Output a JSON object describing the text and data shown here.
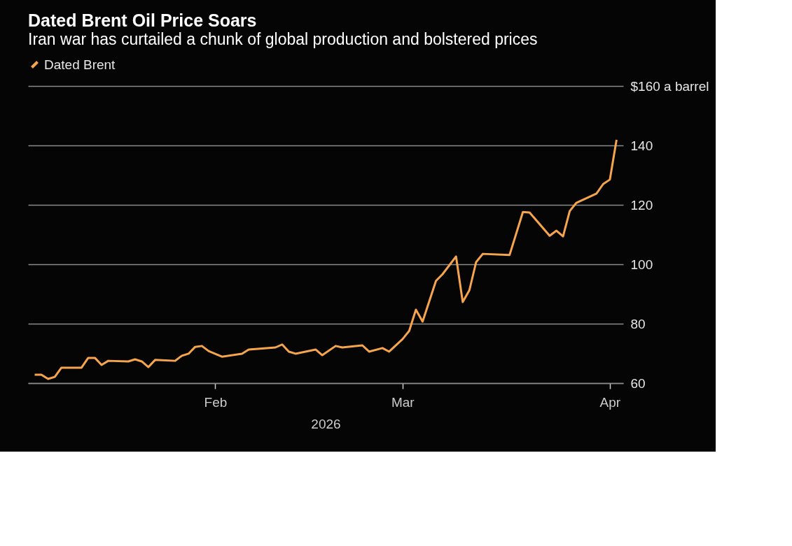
{
  "chart_data": {
    "type": "line",
    "title": "Dated Brent Oil Price Soars",
    "subtitle": "Iran war has curtailed a chunk of global production and bolstered prices",
    "xlabel": "2026",
    "legend": "top left",
    "grid": "y",
    "line_style": "solid",
    "marker": "none",
    "xlim": [
      "2026-01-04",
      "2026-04-03"
    ],
    "xticks": [
      {
        "value": "2026-02-01",
        "label": "Feb"
      },
      {
        "value": "2026-03-01",
        "label": "Mar"
      },
      {
        "value": "2026-04-01",
        "label": "Apr"
      }
    ],
    "ylim": [
      60,
      160
    ],
    "yticks": [
      60,
      80,
      100,
      120,
      140,
      {
        "value": 160,
        "label": "$160 a barrel"
      }
    ],
    "x": [
      "2026-01-05",
      "2026-01-06",
      "2026-01-07",
      "2026-01-08",
      "2026-01-09",
      "2026-01-12",
      "2026-01-13",
      "2026-01-14",
      "2026-01-15",
      "2026-01-16",
      "2026-01-19",
      "2026-01-20",
      "2026-01-21",
      "2026-01-22",
      "2026-01-23",
      "2026-01-26",
      "2026-01-27",
      "2026-01-28",
      "2026-01-29",
      "2026-01-30",
      "2026-01-31",
      "2026-02-02",
      "2026-02-05",
      "2026-02-06",
      "2026-02-10",
      "2026-02-11",
      "2026-02-12",
      "2026-02-13",
      "2026-02-16",
      "2026-02-17",
      "2026-02-19",
      "2026-02-20",
      "2026-02-23",
      "2026-02-24",
      "2026-02-26",
      "2026-02-27",
      "2026-03-01",
      "2026-03-02",
      "2026-03-03",
      "2026-03-04",
      "2026-03-06",
      "2026-03-07",
      "2026-03-09",
      "2026-03-10",
      "2026-03-11",
      "2026-03-12",
      "2026-03-13",
      "2026-03-17",
      "2026-03-19",
      "2026-03-20",
      "2026-03-23",
      "2026-03-24",
      "2026-03-25",
      "2026-03-26",
      "2026-03-27",
      "2026-03-30",
      "2026-03-31",
      "2026-04-01",
      "2026-04-02"
    ],
    "series": [
      {
        "name": "Dated Brent",
        "color": "#f6a54c",
        "values": [
          62.8,
          62.8,
          61.4,
          62.1,
          65.2,
          65.2,
          68.5,
          68.5,
          66.1,
          67.5,
          67.3,
          68.0,
          67.3,
          65.4,
          67.8,
          67.5,
          69.2,
          69.9,
          72.2,
          72.5,
          70.8,
          68.9,
          69.9,
          71.3,
          72.0,
          73.0,
          70.6,
          69.9,
          71.3,
          69.4,
          72.5,
          72.0,
          72.7,
          70.6,
          71.8,
          70.6,
          74.8,
          77.6,
          84.7,
          80.7,
          94.4,
          96.7,
          102.6,
          87.3,
          91.3,
          100.7,
          103.5,
          103.1,
          117.6,
          117.4,
          109.6,
          111.3,
          109.4,
          117.9,
          120.7,
          123.8,
          127.0,
          128.5,
          141.9
        ]
      }
    ]
  }
}
